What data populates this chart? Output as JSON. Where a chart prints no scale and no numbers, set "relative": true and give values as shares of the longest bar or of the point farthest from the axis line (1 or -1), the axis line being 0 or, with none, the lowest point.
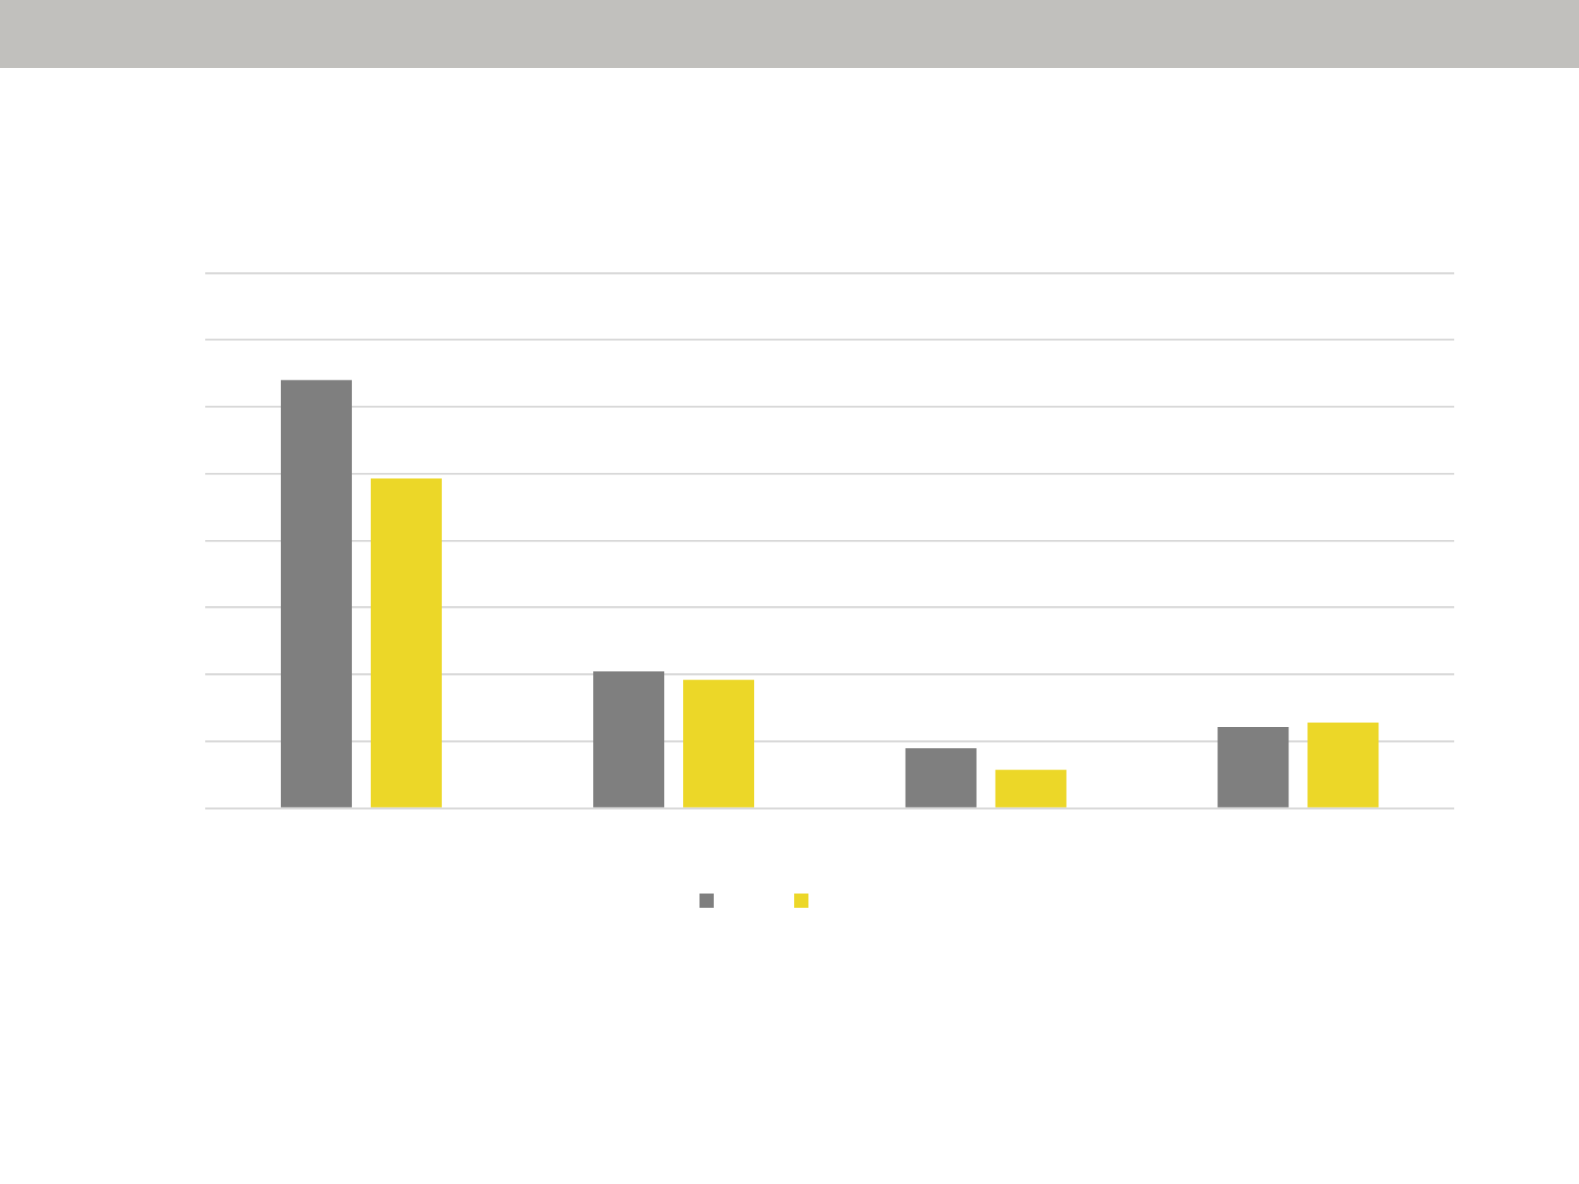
{
  "chart_data": {
    "type": "bar",
    "relative": true,
    "categories": [
      null,
      null,
      null,
      null
    ],
    "series": [
      {
        "color": "#7f7f7f",
        "values": [
          1,
          0.32,
          0.14,
          0.19
        ]
      },
      {
        "color": "#ecd728",
        "values": [
          0.77,
          0.3,
          0.09,
          0.2
        ]
      }
    ],
    "grid": "y"
  }
}
